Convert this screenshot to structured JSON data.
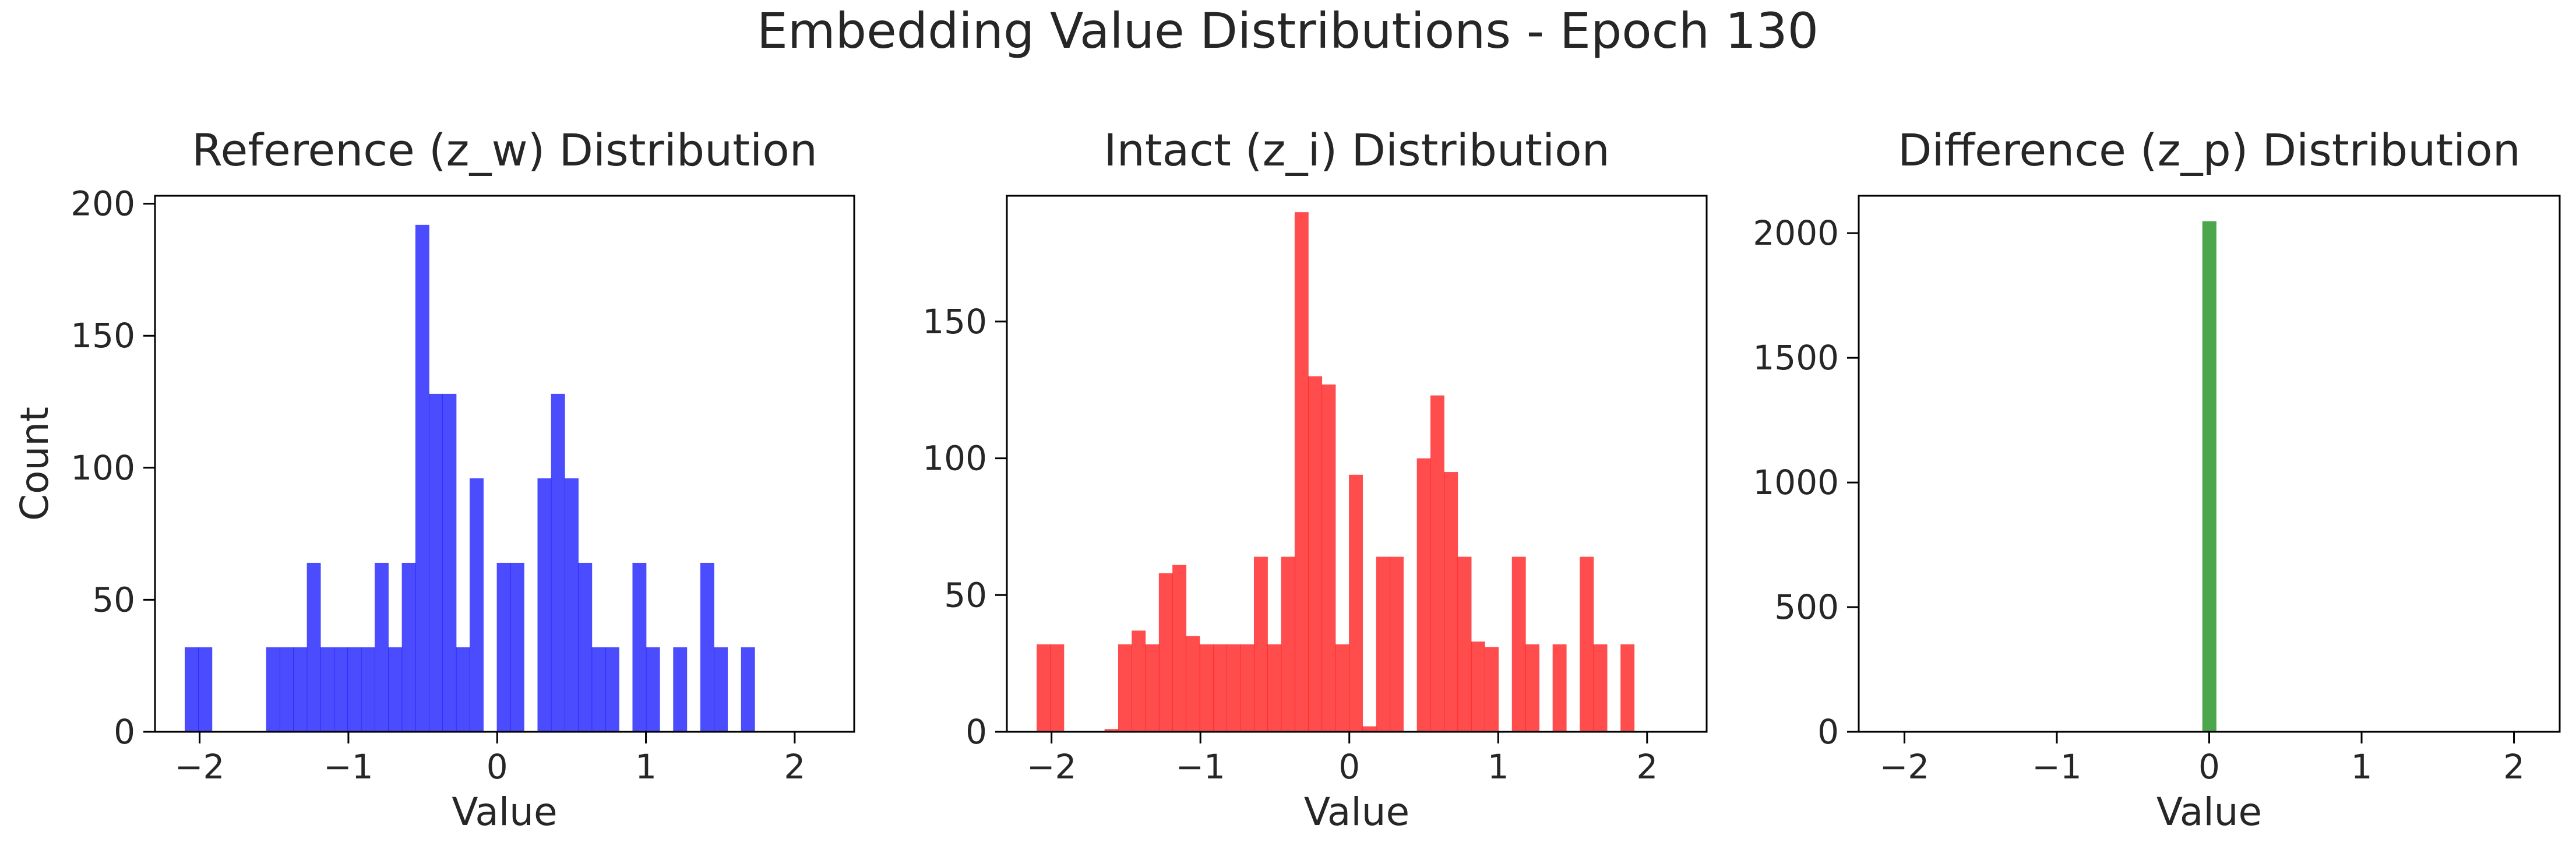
{
  "figure": {
    "title": "Embedding Value Distributions - Epoch 130"
  },
  "chart_data": [
    {
      "type": "bar",
      "title": "Reference (z_w) Distribution",
      "xlabel": "Value",
      "ylabel": "Count",
      "color": "#0000ff",
      "opacity": 0.7,
      "grid": false,
      "xlim": [
        -2.3,
        2.4
      ],
      "ylim": [
        0,
        203
      ],
      "xticks": [
        -2,
        -1,
        0,
        1,
        2
      ],
      "xtick_labels": [
        "−2",
        "−1",
        "0",
        "1",
        "2"
      ],
      "yticks": [
        0,
        50,
        100,
        150,
        200
      ],
      "ytick_labels": [
        "0",
        "50",
        "100",
        "150",
        "200"
      ],
      "bin_start": -2.1,
      "bin_width": 0.0912,
      "counts": [
        32,
        32,
        0,
        0,
        0,
        0,
        32,
        32,
        32,
        64,
        32,
        32,
        32,
        32,
        64,
        32,
        64,
        192,
        128,
        128,
        32,
        96,
        0,
        64,
        64,
        0,
        96,
        128,
        96,
        64,
        32,
        32,
        0,
        64,
        32,
        0,
        32,
        0,
        64,
        32,
        0,
        32,
        0,
        0,
        0
      ]
    },
    {
      "type": "bar",
      "title": "Intact (z_i) Distribution",
      "xlabel": "Value",
      "ylabel": "",
      "color": "#ff0000",
      "opacity": 0.7,
      "grid": false,
      "xlim": [
        -2.3,
        2.4
      ],
      "ylim": [
        0,
        196
      ],
      "xticks": [
        -2,
        -1,
        0,
        1,
        2
      ],
      "xtick_labels": [
        "−2",
        "−1",
        "0",
        "1",
        "2"
      ],
      "yticks": [
        0,
        50,
        100,
        150
      ],
      "ytick_labels": [
        "0",
        "50",
        "100",
        "150"
      ],
      "bin_start": -2.1,
      "bin_width": 0.0912,
      "counts": [
        32,
        32,
        0,
        0,
        0,
        1,
        32,
        37,
        32,
        58,
        61,
        35,
        32,
        32,
        32,
        32,
        64,
        32,
        64,
        190,
        130,
        127,
        32,
        94,
        2,
        64,
        64,
        0,
        100,
        123,
        95,
        64,
        33,
        31,
        0,
        64,
        32,
        0,
        32,
        0,
        64,
        32,
        0,
        32,
        0
      ]
    },
    {
      "type": "bar",
      "title": "Difference (z_p) Distribution",
      "xlabel": "Value",
      "ylabel": "",
      "color": "#008000",
      "opacity": 0.7,
      "grid": false,
      "xlim": [
        -2.3,
        2.3
      ],
      "ylim": [
        0,
        2150
      ],
      "xticks": [
        -2,
        -1,
        0,
        1,
        2
      ],
      "xtick_labels": [
        "−2",
        "−1",
        "0",
        "1",
        "2"
      ],
      "yticks": [
        0,
        500,
        1000,
        1500,
        2000
      ],
      "ytick_labels": [
        "0",
        "500",
        "1000",
        "1500",
        "2000"
      ],
      "bars": [
        {
          "x": 0.0,
          "width": 0.09,
          "count": 2048
        }
      ]
    }
  ]
}
